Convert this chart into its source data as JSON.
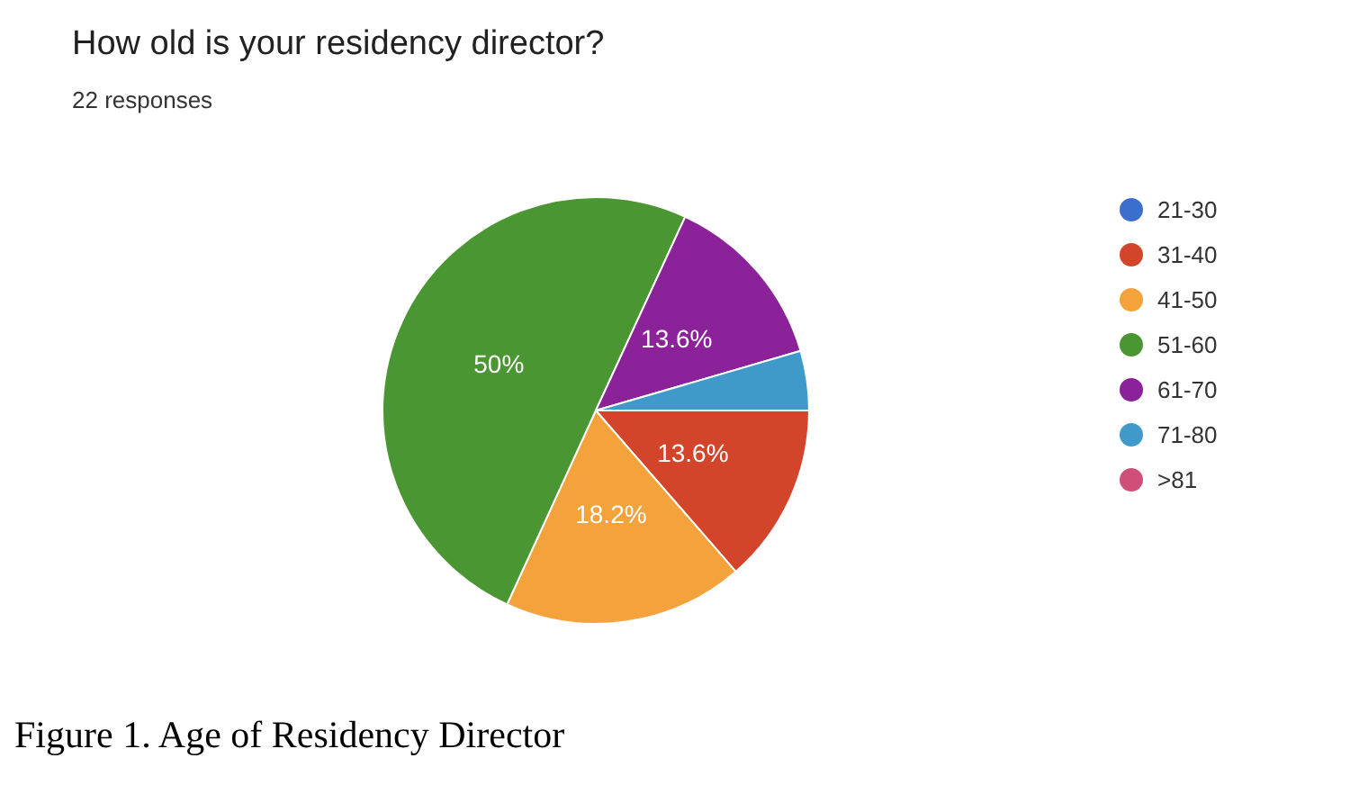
{
  "chart_data": {
    "type": "pie",
    "title": "How old is your residency director?",
    "subtitle": "22 responses",
    "categories": [
      "21-30",
      "31-40",
      "41-50",
      "51-60",
      "61-70",
      "71-80",
      ">81"
    ],
    "values": [
      0,
      13.6,
      18.2,
      50,
      13.6,
      4.5,
      0
    ],
    "colors": [
      "#3c6fcd",
      "#d2452a",
      "#f4a23b",
      "#4a9632",
      "#8c2299",
      "#3f9ac9",
      "#d04f79"
    ],
    "value_labels": [
      null,
      "13.6%",
      "18.2%",
      "50%",
      "13.6%",
      null,
      null
    ],
    "legend": "right",
    "annotations": [
      "Figure 1. Age of Residency Director"
    ]
  }
}
